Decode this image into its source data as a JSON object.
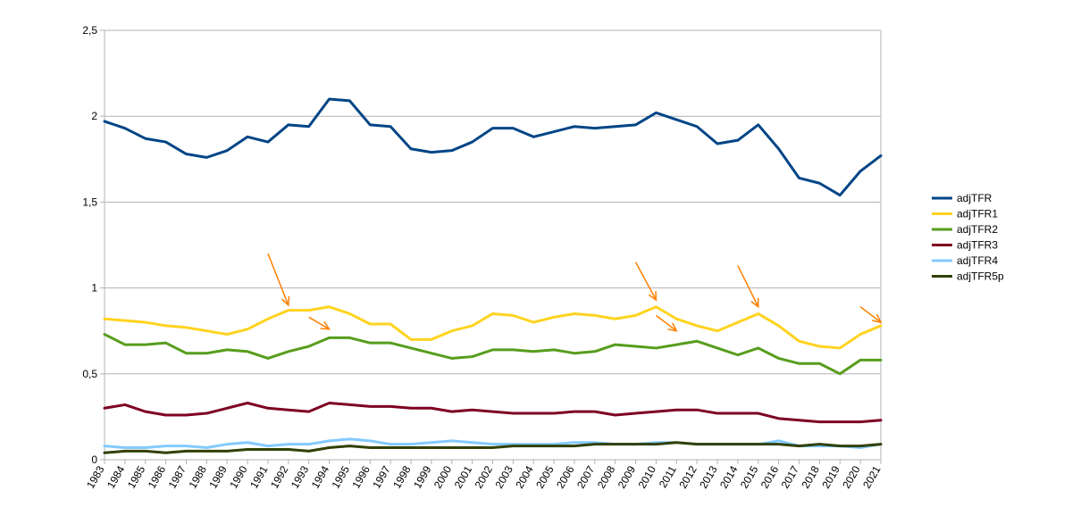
{
  "chart_data": {
    "type": "line",
    "title": "",
    "xlabel": "",
    "ylabel": "",
    "ylim": [
      0,
      2.5
    ],
    "y_ticks": [
      {
        "value": 0,
        "label": "0"
      },
      {
        "value": 0.5,
        "label": "0,5"
      },
      {
        "value": 1,
        "label": "1"
      },
      {
        "value": 1.5,
        "label": "1,5"
      },
      {
        "value": 2,
        "label": "2"
      },
      {
        "value": 2.5,
        "label": "2,5"
      }
    ],
    "x": [
      "1983",
      "1984",
      "1985",
      "1986",
      "1987",
      "1988",
      "1989",
      "1990",
      "1991",
      "1992",
      "1993",
      "1994",
      "1995",
      "1996",
      "1997",
      "1998",
      "1999",
      "2000",
      "2001",
      "2002",
      "2003",
      "2004",
      "2005",
      "2006",
      "2007",
      "2008",
      "2009",
      "2010",
      "2011",
      "2012",
      "2013",
      "2014",
      "2015",
      "2016",
      "2017",
      "2018",
      "2019",
      "2020",
      "2021"
    ],
    "grid": "horizontal",
    "legend_position": "right",
    "series": [
      {
        "name": "adjTFR",
        "color": "#004586",
        "values": [
          1.97,
          1.93,
          1.87,
          1.85,
          1.78,
          1.76,
          1.8,
          1.88,
          1.85,
          1.95,
          1.94,
          2.1,
          2.09,
          1.95,
          1.94,
          1.81,
          1.79,
          1.8,
          1.85,
          1.93,
          1.93,
          1.88,
          1.91,
          1.94,
          1.93,
          1.94,
          1.95,
          2.02,
          1.98,
          1.94,
          1.84,
          1.86,
          1.95,
          1.81,
          1.64,
          1.61,
          1.54,
          1.68,
          1.77
        ]
      },
      {
        "name": "adjTFR1",
        "color": "#ffd320",
        "values": [
          0.82,
          0.81,
          0.8,
          0.78,
          0.77,
          0.75,
          0.73,
          0.76,
          0.82,
          0.87,
          0.87,
          0.89,
          0.85,
          0.79,
          0.79,
          0.7,
          0.7,
          0.75,
          0.78,
          0.85,
          0.84,
          0.8,
          0.83,
          0.85,
          0.84,
          0.82,
          0.84,
          0.89,
          0.82,
          0.78,
          0.75,
          0.8,
          0.85,
          0.78,
          0.69,
          0.66,
          0.65,
          0.73,
          0.78
        ]
      },
      {
        "name": "adjTFR2",
        "color": "#579d1c",
        "values": [
          0.73,
          0.67,
          0.67,
          0.68,
          0.62,
          0.62,
          0.64,
          0.63,
          0.59,
          0.63,
          0.66,
          0.71,
          0.71,
          0.68,
          0.68,
          0.65,
          0.62,
          0.59,
          0.6,
          0.64,
          0.64,
          0.63,
          0.64,
          0.62,
          0.63,
          0.67,
          0.66,
          0.65,
          0.67,
          0.69,
          0.65,
          0.61,
          0.65,
          0.59,
          0.56,
          0.56,
          0.5,
          0.58,
          0.58
        ]
      },
      {
        "name": "adjTFR3",
        "color": "#7e0021",
        "values": [
          0.3,
          0.32,
          0.28,
          0.26,
          0.26,
          0.27,
          0.3,
          0.33,
          0.3,
          0.29,
          0.28,
          0.33,
          0.32,
          0.31,
          0.31,
          0.3,
          0.3,
          0.28,
          0.29,
          0.28,
          0.27,
          0.27,
          0.27,
          0.28,
          0.28,
          0.26,
          0.27,
          0.28,
          0.29,
          0.29,
          0.27,
          0.27,
          0.27,
          0.24,
          0.23,
          0.22,
          0.22,
          0.22,
          0.23
        ]
      },
      {
        "name": "adjTFR4",
        "color": "#83caff",
        "values": [
          0.08,
          0.07,
          0.07,
          0.08,
          0.08,
          0.07,
          0.09,
          0.1,
          0.08,
          0.09,
          0.09,
          0.11,
          0.12,
          0.11,
          0.09,
          0.09,
          0.1,
          0.11,
          0.1,
          0.09,
          0.09,
          0.09,
          0.09,
          0.1,
          0.1,
          0.09,
          0.09,
          0.1,
          0.1,
          0.09,
          0.09,
          0.09,
          0.09,
          0.11,
          0.08,
          0.08,
          0.08,
          0.07,
          0.09
        ]
      },
      {
        "name": "adjTFR5p",
        "color": "#314004",
        "values": [
          0.04,
          0.05,
          0.05,
          0.04,
          0.05,
          0.05,
          0.05,
          0.06,
          0.06,
          0.06,
          0.05,
          0.07,
          0.08,
          0.07,
          0.07,
          0.07,
          0.07,
          0.07,
          0.07,
          0.07,
          0.08,
          0.08,
          0.08,
          0.08,
          0.09,
          0.09,
          0.09,
          0.09,
          0.1,
          0.09,
          0.09,
          0.09,
          0.09,
          0.09,
          0.08,
          0.09,
          0.08,
          0.08,
          0.09
        ]
      }
    ],
    "annotations": [
      {
        "type": "arrow",
        "color": "#ff7f00",
        "from": [
          "1991",
          1.2
        ],
        "to": [
          "1992",
          0.9
        ]
      },
      {
        "type": "arrow",
        "color": "#ff7f00",
        "from": [
          "1993",
          0.83
        ],
        "to": [
          "1994",
          0.76
        ]
      },
      {
        "type": "arrow",
        "color": "#ff7f00",
        "from": [
          "2009",
          1.15
        ],
        "to": [
          "2010",
          0.93
        ]
      },
      {
        "type": "arrow",
        "color": "#ff7f00",
        "from": [
          "2010",
          0.84
        ],
        "to": [
          "2011",
          0.75
        ]
      },
      {
        "type": "arrow",
        "color": "#ff7f00",
        "from": [
          "2014",
          1.13
        ],
        "to": [
          "2015",
          0.89
        ]
      },
      {
        "type": "arrow",
        "color": "#ff7f00",
        "from": [
          "2020",
          0.89
        ],
        "to": [
          "2021",
          0.8
        ]
      }
    ]
  }
}
